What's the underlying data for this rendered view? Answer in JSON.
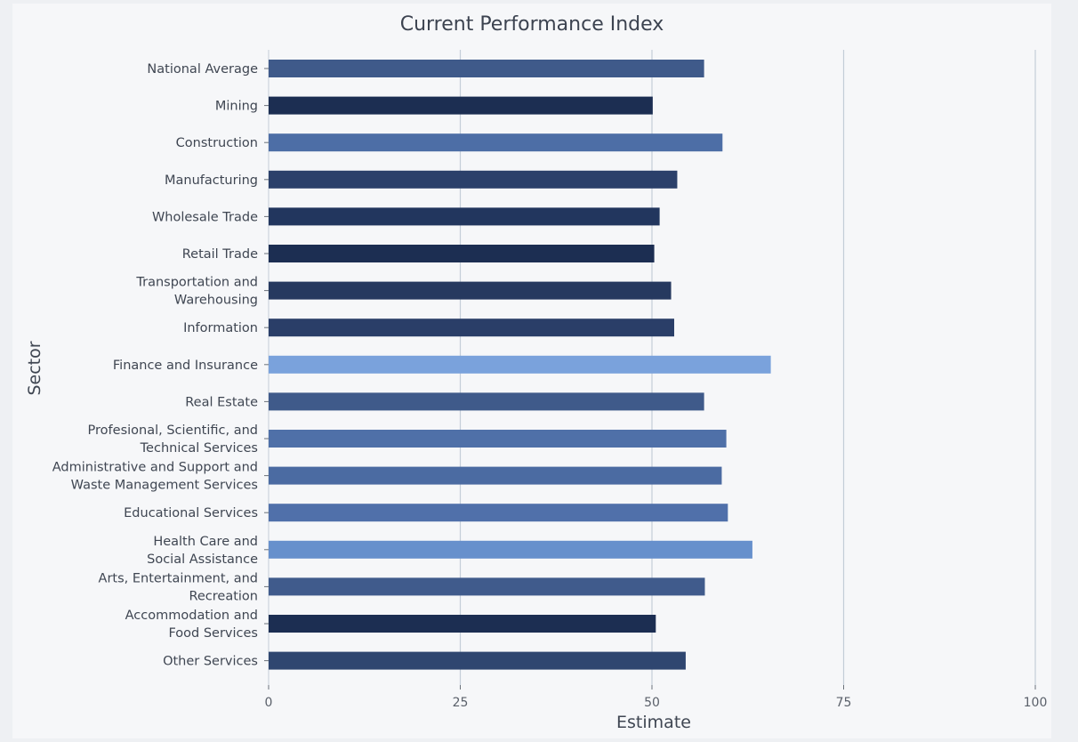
{
  "chart_data": {
    "type": "bar",
    "orientation": "horizontal",
    "title": "Current Performance Index",
    "xlabel": "Estimate",
    "ylabel": "Sector",
    "xlim": [
      0,
      100
    ],
    "xticks": [
      0,
      25,
      50,
      75,
      100
    ],
    "grid": true,
    "categories": [
      [
        "National Average"
      ],
      [
        "Mining"
      ],
      [
        "Construction"
      ],
      [
        "Manufacturing"
      ],
      [
        "Wholesale Trade"
      ],
      [
        "Retail Trade"
      ],
      [
        "Transportation and",
        "Warehousing"
      ],
      [
        "Information"
      ],
      [
        "Finance and Insurance"
      ],
      [
        "Real Estate"
      ],
      [
        "Profesional, Scientific, and",
        "Technical Services"
      ],
      [
        "Administrative and Support and",
        "Waste Management Services"
      ],
      [
        "Educational Services"
      ],
      [
        "Health Care and",
        "Social Assistance"
      ],
      [
        "Arts, Entertainment, and",
        "Recreation"
      ],
      [
        "Accommodation and",
        "Food Services"
      ],
      [
        "Other Services"
      ]
    ],
    "values": [
      56.8,
      50.1,
      59.2,
      53.3,
      51.0,
      50.3,
      52.5,
      52.9,
      65.5,
      56.8,
      59.7,
      59.1,
      59.9,
      63.1,
      56.9,
      50.5,
      54.4
    ],
    "colors": [
      "#3f5a8a",
      "#1c2e52",
      "#4d6ea6",
      "#2b406a",
      "#22365e",
      "#1c2e52",
      "#26395f",
      "#2a3e68",
      "#7aa2dc",
      "#3f5a8a",
      "#4f70a8",
      "#4b6ba2",
      "#5070aa",
      "#6790cc",
      "#405b8c",
      "#1c2e52",
      "#2f4670"
    ]
  }
}
